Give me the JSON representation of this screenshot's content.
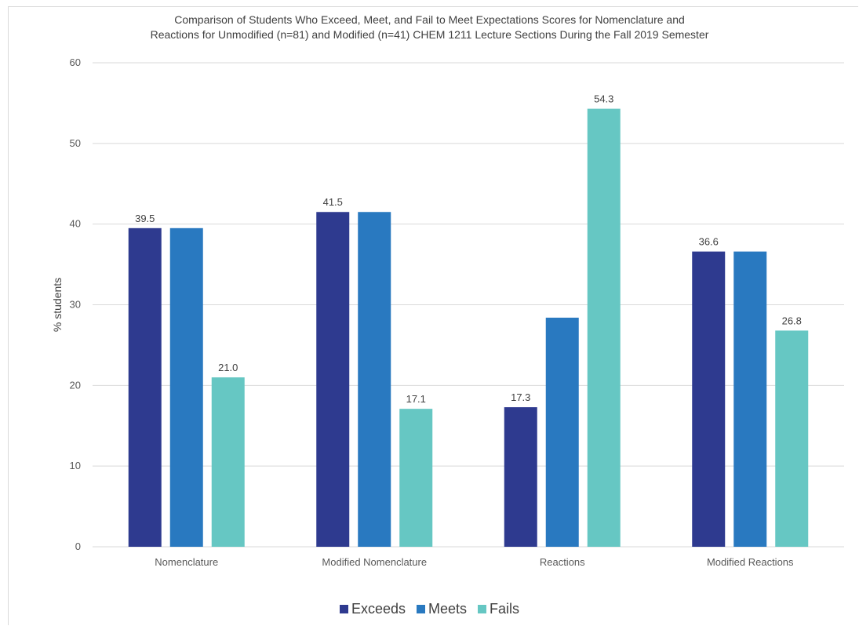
{
  "chart_data": {
    "type": "bar",
    "title_lines": [
      "Comparison of Students Who Exceed, Meet, and Fail to Meet Expectations Scores for Nomenclature and",
      "Reactions for Unmodified (n=81) and Modified (n=41) CHEM 1211 Lecture Sections During the Fall 2019 Semester"
    ],
    "xlabel": "",
    "ylabel": "% students",
    "ylim": [
      0,
      60
    ],
    "yticks": [
      0,
      10,
      20,
      30,
      40,
      50,
      60
    ],
    "grid": true,
    "legend_position": "bottom",
    "categories": [
      "Nomenclature",
      "Modified Nomenclature",
      "Reactions",
      "Modified Reactions"
    ],
    "series": [
      {
        "name": "Exceeds",
        "color": "#2e3a8f",
        "values": [
          39.5,
          41.5,
          17.3,
          36.6
        ],
        "labels": [
          "39.5",
          "41.5",
          "17.3",
          "36.6"
        ]
      },
      {
        "name": "Meets",
        "color": "#2979c0",
        "values": [
          39.5,
          41.5,
          28.4,
          36.6
        ],
        "labels": [
          "",
          "",
          "",
          ""
        ]
      },
      {
        "name": "Fails",
        "color": "#66c7c3",
        "values": [
          21.0,
          17.1,
          54.3,
          26.8
        ],
        "labels": [
          "21.0",
          "17.1",
          "54.3",
          "26.8"
        ]
      }
    ]
  }
}
